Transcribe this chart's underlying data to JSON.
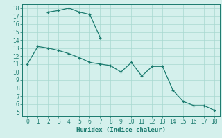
{
  "line1_x": [
    2,
    3,
    4,
    5,
    6,
    7
  ],
  "line1_y": [
    17.5,
    17.7,
    18.0,
    17.5,
    17.2,
    14.3
  ],
  "line2_x": [
    0,
    1,
    2,
    3,
    4,
    5,
    6,
    7,
    8,
    9,
    10,
    11,
    12,
    13,
    14,
    15,
    16,
    17,
    18
  ],
  "line2_y": [
    11.0,
    13.2,
    13.0,
    12.7,
    12.3,
    11.8,
    11.2,
    11.0,
    10.8,
    10.0,
    11.2,
    9.5,
    10.7,
    10.7,
    7.7,
    6.3,
    5.8,
    5.8,
    5.2
  ],
  "line_color": "#1a7a6e",
  "bg_color": "#d4f0ec",
  "grid_color": "#a8d8d0",
  "xlabel": "Humidex (Indice chaleur)",
  "xlim": [
    -0.5,
    18.5
  ],
  "ylim": [
    4.5,
    18.5
  ],
  "xticks": [
    0,
    1,
    2,
    3,
    4,
    5,
    6,
    7,
    8,
    9,
    10,
    11,
    12,
    13,
    14,
    15,
    16,
    17,
    18
  ],
  "yticks": [
    5,
    6,
    7,
    8,
    9,
    10,
    11,
    12,
    13,
    14,
    15,
    16,
    17,
    18
  ],
  "tick_fontsize": 5.5,
  "xlabel_fontsize": 6.5,
  "marker": "+",
  "markersize": 3.5,
  "linewidth": 0.9
}
